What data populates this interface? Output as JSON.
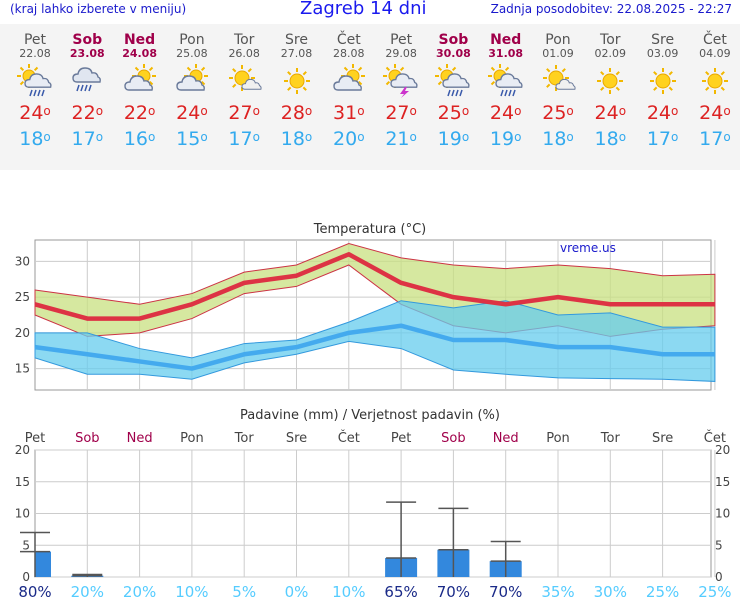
{
  "header": {
    "note": "(kraj lahko izberete v meniju)",
    "title": "Zagreb 14 dni",
    "updated": "Zadnja posodobitev: 22.08.2025 - 22:27"
  },
  "days": [
    {
      "name": "Pet",
      "date": "22.08",
      "weekend": false,
      "icon": "sun-cloud-rain-icon",
      "max": "24",
      "min": "18"
    },
    {
      "name": "Sob",
      "date": "23.08",
      "weekend": true,
      "icon": "cloud-rain-icon",
      "max": "22",
      "min": "17"
    },
    {
      "name": "Ned",
      "date": "24.08",
      "weekend": true,
      "icon": "sun-cloud-icon",
      "max": "22",
      "min": "16"
    },
    {
      "name": "Pon",
      "date": "25.08",
      "weekend": false,
      "icon": "sun-cloud-icon",
      "max": "24",
      "min": "15"
    },
    {
      "name": "Tor",
      "date": "26.08",
      "weekend": false,
      "icon": "sun-cloud-small-icon",
      "max": "27",
      "min": "17"
    },
    {
      "name": "Sre",
      "date": "27.08",
      "weekend": false,
      "icon": "sun-icon",
      "max": "28",
      "min": "18"
    },
    {
      "name": "Čet",
      "date": "28.08",
      "weekend": false,
      "icon": "sun-cloud-icon",
      "max": "31",
      "min": "20"
    },
    {
      "name": "Pet",
      "date": "29.08",
      "weekend": false,
      "icon": "sun-cloud-thunder-icon",
      "max": "27",
      "min": "21"
    },
    {
      "name": "Sob",
      "date": "30.08",
      "weekend": true,
      "icon": "sun-cloud-rain-icon",
      "max": "25",
      "min": "19"
    },
    {
      "name": "Ned",
      "date": "31.08",
      "weekend": true,
      "icon": "sun-cloud-rain-icon",
      "max": "24",
      "min": "19"
    },
    {
      "name": "Pon",
      "date": "01.09",
      "weekend": false,
      "icon": "sun-cloud-small-icon",
      "max": "25",
      "min": "18"
    },
    {
      "name": "Tor",
      "date": "02.09",
      "weekend": false,
      "icon": "sun-icon",
      "max": "24",
      "min": "18"
    },
    {
      "name": "Sre",
      "date": "03.09",
      "weekend": false,
      "icon": "sun-icon",
      "max": "24",
      "min": "17"
    },
    {
      "name": "Čet",
      "date": "04.09",
      "weekend": false,
      "icon": "sun-icon",
      "max": "24",
      "min": "17"
    }
  ],
  "colors": {
    "max": "#dd3344",
    "min": "#44aaee",
    "weekend": "#a0004a",
    "bar": "#3388dd",
    "rain_band": "#c8e080",
    "prob_strong": "#1a2a88",
    "prob_weak": "#55ccff"
  },
  "chart_data": [
    {
      "type": "line",
      "title": "Temperatura (°C)",
      "watermark": "vreme.us",
      "ylim": [
        12,
        33
      ],
      "yticks": [
        15,
        20,
        25,
        30
      ],
      "categories": [
        "Pet",
        "Sob",
        "Ned",
        "Pon",
        "Tor",
        "Sre",
        "Čet",
        "Pet",
        "Sob",
        "Ned",
        "Pon",
        "Tor",
        "Sre",
        "Čet"
      ],
      "series": [
        {
          "name": "max",
          "values": [
            24,
            22,
            22,
            24,
            27,
            28,
            31,
            27,
            25,
            24,
            25,
            24,
            24,
            24
          ],
          "upper": [
            26,
            25,
            24,
            25.5,
            28.5,
            29.5,
            32.5,
            30.5,
            29.5,
            29,
            29.5,
            29,
            28,
            28.2
          ],
          "lower": [
            22.5,
            19.5,
            20,
            22,
            25.5,
            26.5,
            29.5,
            24,
            21,
            20,
            21,
            19.5,
            20.5,
            21
          ]
        },
        {
          "name": "min",
          "values": [
            18,
            17,
            16,
            15,
            17,
            18,
            20,
            21,
            19,
            19,
            18,
            18,
            17,
            17
          ],
          "upper": [
            20,
            20,
            17.8,
            16.5,
            18.5,
            19,
            21.5,
            24.5,
            23.5,
            24.5,
            22.5,
            22.8,
            20.8,
            20.8
          ],
          "lower": [
            16.5,
            14.2,
            14.2,
            13.5,
            15.8,
            17,
            18.8,
            17.8,
            14.8,
            14.2,
            13.7,
            13.6,
            13.5,
            13.2
          ]
        }
      ]
    },
    {
      "type": "bar",
      "title": "Padavine (mm) / Verjetnost padavin (%)",
      "ylim": [
        0,
        20
      ],
      "yticks": [
        0,
        5,
        10,
        15,
        20
      ],
      "categories": [
        "Pet",
        "Sob",
        "Ned",
        "Pon",
        "Tor",
        "Sre",
        "Čet",
        "Pet",
        "Sob",
        "Ned",
        "Pon",
        "Tor",
        "Sre",
        "Čet"
      ],
      "precip": [
        4,
        0.2,
        0,
        0,
        0,
        0,
        0,
        3,
        4.3,
        2.5,
        0,
        0,
        0,
        0
      ],
      "error_high": [
        7,
        0.4,
        0,
        0,
        0,
        0,
        0,
        11.8,
        10.8,
        5.6,
        0,
        0,
        0,
        0
      ],
      "probability": [
        "80%",
        "20%",
        "20%",
        "10%",
        "5%",
        "0%",
        "10%",
        "65%",
        "70%",
        "70%",
        "35%",
        "30%",
        "25%",
        "25%"
      ]
    }
  ]
}
